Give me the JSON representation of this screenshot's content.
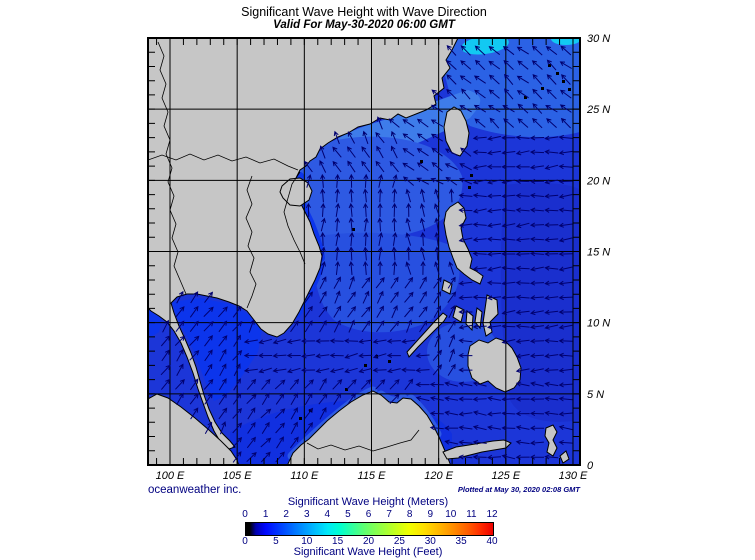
{
  "header": {
    "title": "Significant Wave Height with Wave Direction",
    "subtitle": "Valid For May-30-2020 06:00 GMT"
  },
  "axes": {
    "lat_labels": [
      "30 N",
      "25 N",
      "20 N",
      "15 N",
      "10 N",
      "5 N",
      "0"
    ],
    "lat_values": [
      30,
      25,
      20,
      15,
      10,
      5,
      0
    ],
    "lon_labels": [
      "100 E",
      "105 E",
      "110 E",
      "115 E",
      "120 E",
      "125 E",
      "130 E"
    ],
    "lon_values": [
      100,
      105,
      110,
      115,
      120,
      125,
      130
    ]
  },
  "footer": {
    "credit": "oceanweather inc.",
    "plotted": "Plotted at May 30, 2020 02:08 GMT"
  },
  "colorbar": {
    "title_meters": "Significant Wave Height (Meters)",
    "title_feet": "Significant Wave Height (Feet)",
    "meters_ticks": [
      "0",
      "1",
      "2",
      "3",
      "4",
      "5",
      "6",
      "7",
      "8",
      "9",
      "10",
      "11",
      "12"
    ],
    "feet_ticks": [
      "0",
      "5",
      "10",
      "15",
      "20",
      "25",
      "30",
      "35",
      "40"
    ]
  },
  "colors": {
    "land": "#c6c6c6",
    "ocean_base": "#1c36d8",
    "arrow": "#000070",
    "navy_text": "#000080",
    "coast_outline": "#000000",
    "cyan_patch": "#12c9f2"
  },
  "wave_field": {
    "regions": [
      {
        "name": "luzon-strait",
        "lon": [
          117.5,
          123
        ],
        "lat": [
          19,
          23
        ],
        "dir": 148
      },
      {
        "name": "northeast-of-taiwan",
        "lon": [
          116,
          131
        ],
        "lat": [
          23,
          30.5
        ],
        "dir": 140
      },
      {
        "name": "pacific-east-of-philippines",
        "lon": [
          121.5,
          131
        ],
        "lat": [
          6,
          23
        ],
        "dir": 184
      },
      {
        "name": "taiwan-strait-china-coast",
        "lon": [
          109,
          121
        ],
        "lat": [
          20.5,
          30.5
        ],
        "dir": 120
      },
      {
        "name": "west-of-luzon",
        "lon": [
          117.5,
          121.5
        ],
        "lat": [
          13.5,
          19
        ],
        "dir": 100
      },
      {
        "name": "northern-south-china-sea",
        "lon": [
          104,
          117.5
        ],
        "lat": [
          13.5,
          22
        ],
        "dir": 85
      },
      {
        "name": "southwest-band",
        "lon": [
          106,
          119
        ],
        "lat": [
          6.5,
          9.5
        ],
        "dir": 188
      },
      {
        "name": "gulf-of-thailand",
        "lon": [
          97,
          106
        ],
        "lat": [
          3.5,
          13.5
        ],
        "dir": 55
      },
      {
        "name": "sulu-celebes",
        "lon": [
          118,
          131
        ],
        "lat": [
          0,
          6
        ],
        "dir": 176
      },
      {
        "name": "southern-south-china-sea",
        "lon": [
          104,
          118
        ],
        "lat": [
          0,
          6.5
        ],
        "dir": 52
      },
      {
        "name": "default-south-china-sea",
        "lon": [
          97,
          131
        ],
        "lat": [
          0,
          30.5
        ],
        "dir": 60
      }
    ]
  },
  "chart_data": {
    "type": "heatmap",
    "title": "Significant Wave Height with Wave Direction",
    "valid_time": "May-30-2020 06:00 GMT",
    "plotted_time": "May 30, 2020 02:08 GMT",
    "region": {
      "lon_range_deg_e": [
        98,
        130.5
      ],
      "lat_range_deg_n": [
        0,
        30
      ]
    },
    "x_axis": {
      "tick_labels": [
        "100 E",
        "105 E",
        "110 E",
        "115 E",
        "120 E",
        "125 E",
        "130 E"
      ]
    },
    "y_axis": {
      "tick_labels": [
        "30 N",
        "25 N",
        "20 N",
        "15 N",
        "10 N",
        "5 N",
        "0"
      ]
    },
    "colorbar_scale": {
      "meters": [
        0,
        1,
        2,
        3,
        4,
        5,
        6,
        7,
        8,
        9,
        10,
        11,
        12
      ],
      "feet": [
        0,
        5,
        10,
        15,
        20,
        25,
        30,
        35,
        40
      ],
      "colormap": "black at 0 then jet (blue-cyan-green-yellow-orange-red)"
    },
    "depicted_values": "Open-water significant wave height about 0.5-3 m (blue shades) across the South China Sea and Philippine Sea; lighter blue/cyan patches (~2-3 m) northeast of Taiwan; arrows show wave direction: north/northeastward in the central and northern South China Sea and Gulf of Thailand, westward east of the Philippines, northwestward near the Luzon Strait and northeast of Taiwan"
  }
}
